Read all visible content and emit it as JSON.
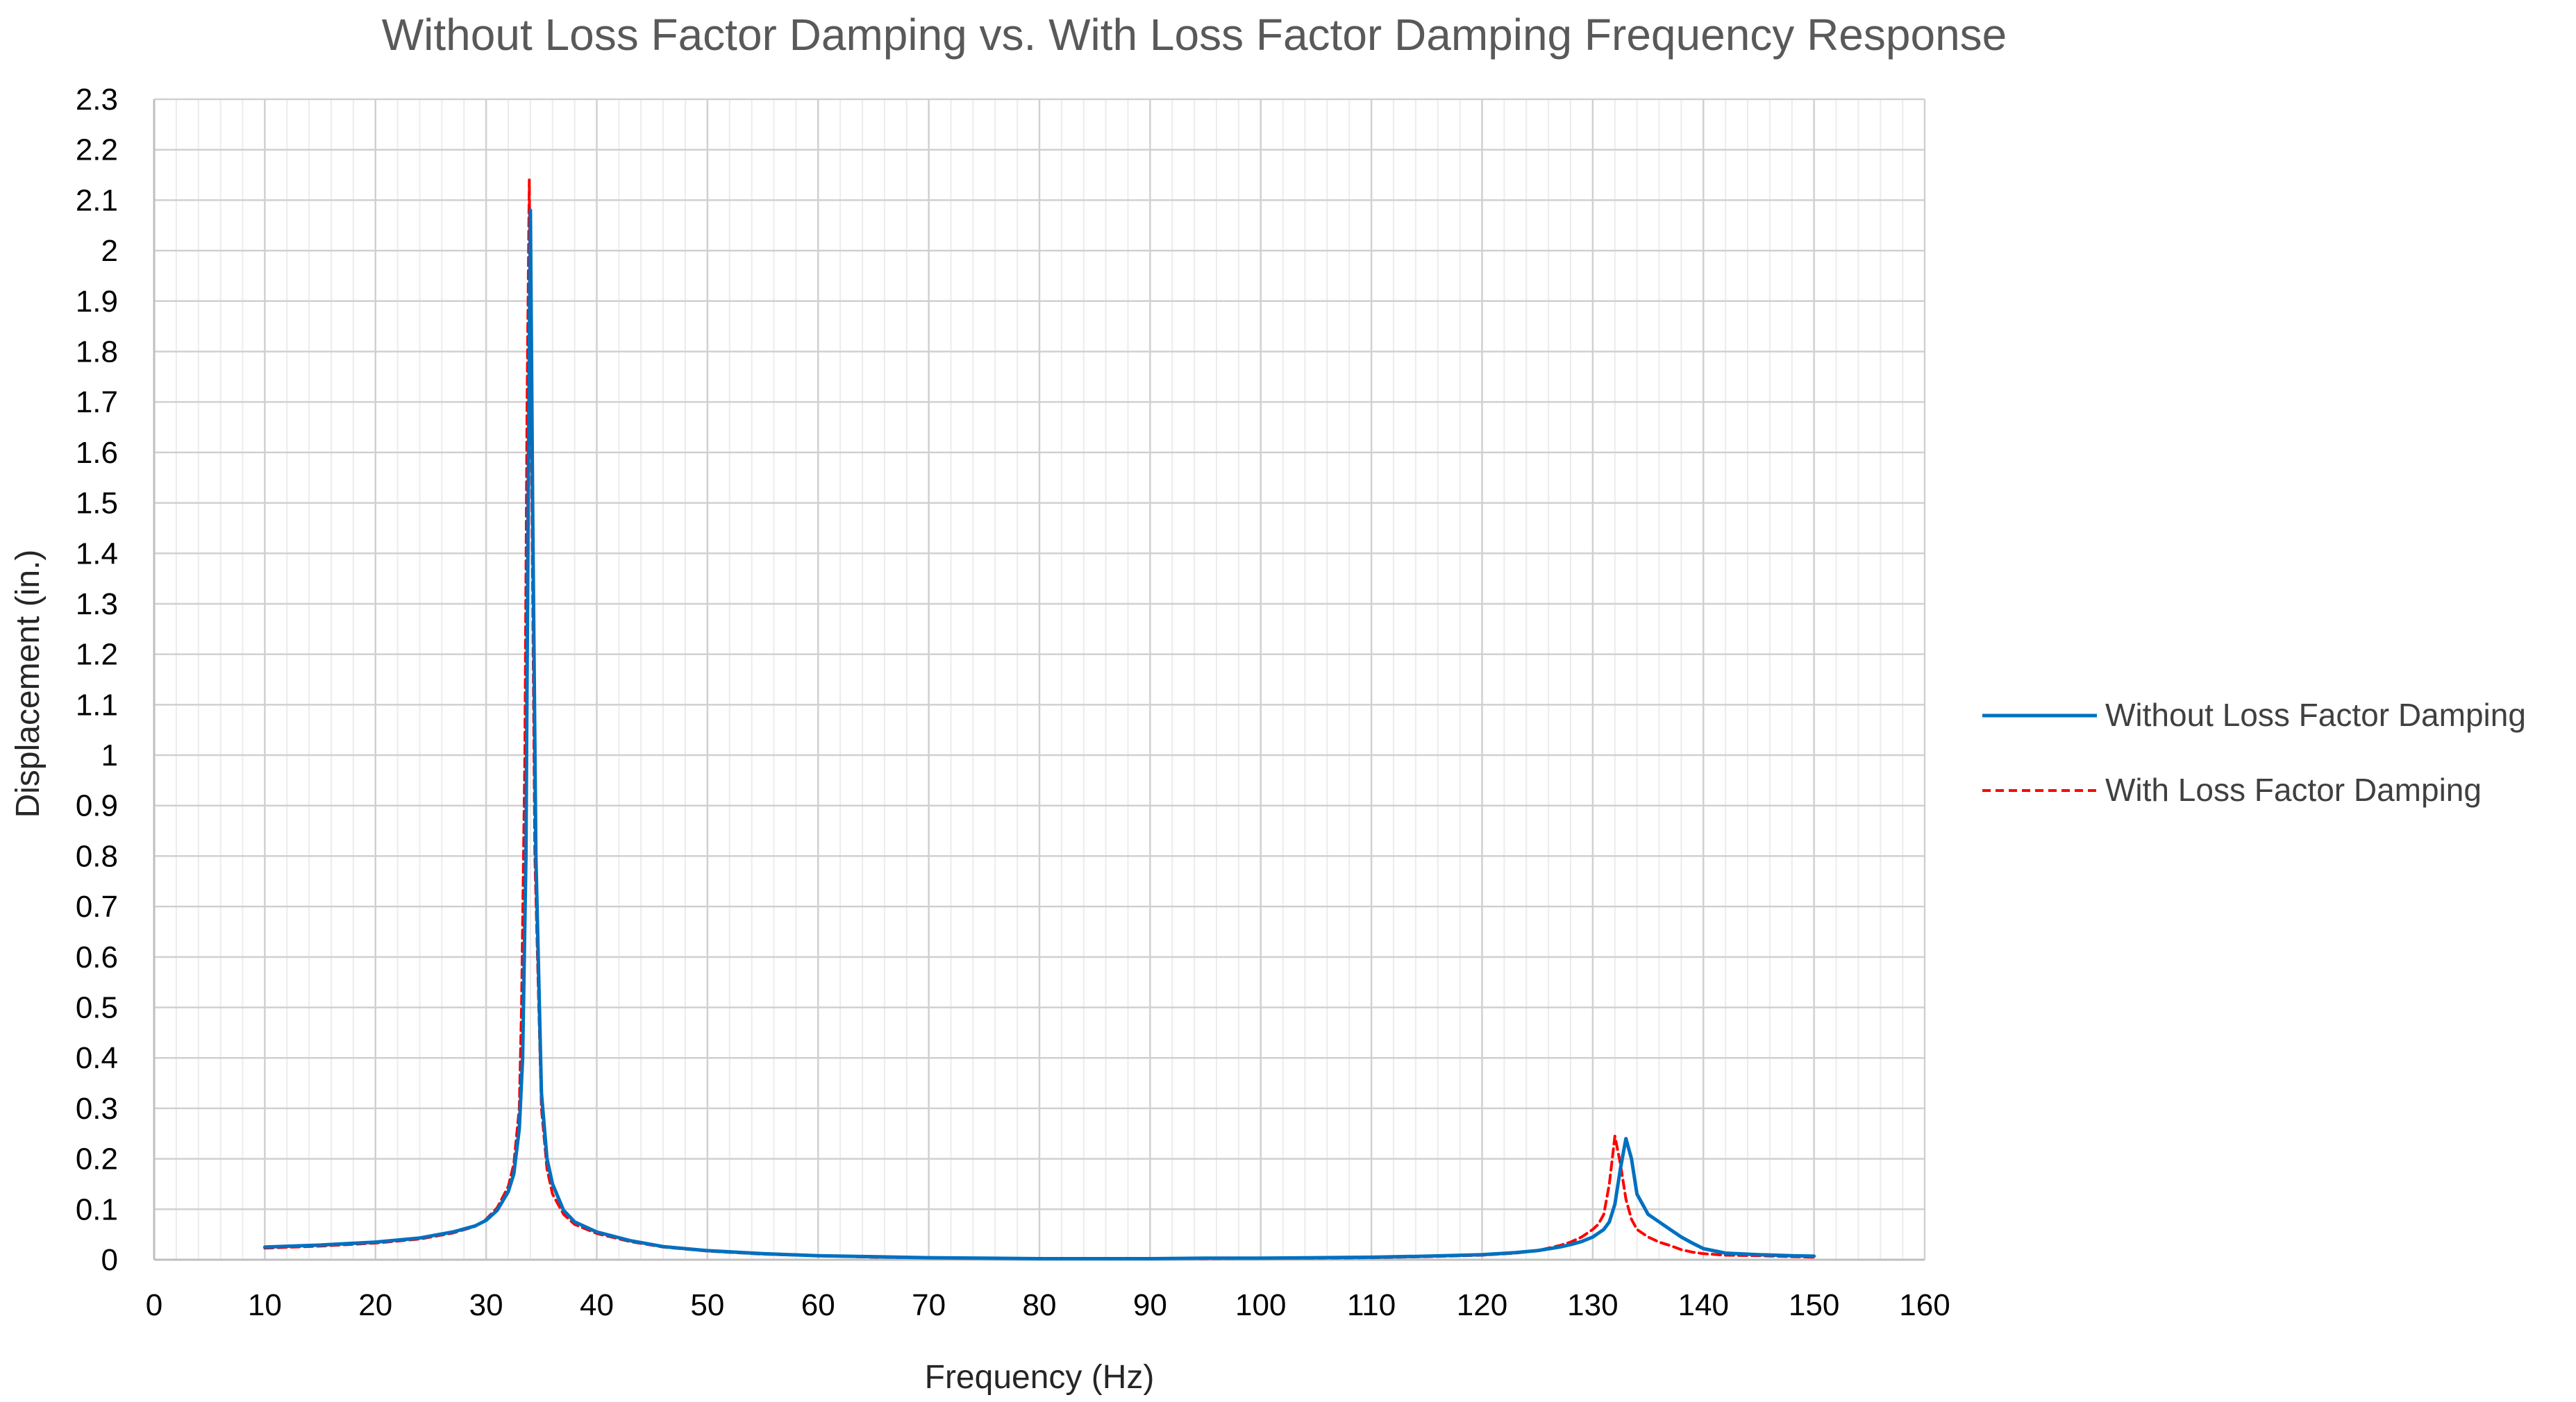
{
  "chart_data": {
    "type": "line",
    "title": "Without Loss Factor Damping vs. With Loss Factor Damping Frequency Response",
    "xlabel": "Frequency (Hz)",
    "ylabel": "Displacement (in.)",
    "xlim": [
      0,
      160
    ],
    "ylim": [
      0,
      2.3
    ],
    "x_major_step": 10,
    "x_minor_step": 2,
    "y_major_step": 0.1,
    "grid": true,
    "legend_position": "right",
    "x_tick_labels": [
      "0",
      "10",
      "20",
      "30",
      "40",
      "50",
      "60",
      "70",
      "80",
      "90",
      "100",
      "110",
      "120",
      "130",
      "140",
      "150",
      "160"
    ],
    "y_tick_labels": [
      "0",
      "0.1",
      "0.2",
      "0.3",
      "0.4",
      "0.5",
      "0.6",
      "0.7",
      "0.8",
      "0.9",
      "1",
      "1.1",
      "1.2",
      "1.3",
      "1.4",
      "1.5",
      "1.6",
      "1.7",
      "1.8",
      "1.9",
      "2",
      "2.1",
      "2.2",
      "2.3"
    ],
    "series": [
      {
        "name": "Without Loss Factor Damping",
        "color": "#0070C0",
        "dash": "solid",
        "x": [
          10,
          15,
          20,
          24,
          27,
          29,
          30,
          31,
          32,
          32.5,
          33,
          33.3,
          33.6,
          33.8,
          34,
          34.2,
          34.5,
          35,
          35.5,
          36,
          37,
          38,
          40,
          43,
          46,
          50,
          55,
          60,
          65,
          70,
          75,
          80,
          85,
          90,
          95,
          100,
          105,
          110,
          115,
          120,
          123,
          125,
          127,
          128,
          129,
          130,
          131,
          131.5,
          132,
          132.5,
          133,
          133.5,
          134,
          135,
          136,
          137,
          138,
          139,
          140,
          142,
          145,
          148,
          150
        ],
        "y": [
          0.025,
          0.029,
          0.035,
          0.043,
          0.055,
          0.067,
          0.078,
          0.098,
          0.135,
          0.17,
          0.26,
          0.4,
          0.8,
          1.5,
          2.08,
          1.5,
          0.8,
          0.33,
          0.2,
          0.15,
          0.098,
          0.075,
          0.055,
          0.038,
          0.026,
          0.018,
          0.012,
          0.008,
          0.006,
          0.004,
          0.003,
          0.002,
          0.002,
          0.002,
          0.003,
          0.003,
          0.004,
          0.005,
          0.007,
          0.01,
          0.014,
          0.018,
          0.025,
          0.03,
          0.036,
          0.045,
          0.06,
          0.075,
          0.11,
          0.18,
          0.24,
          0.2,
          0.13,
          0.09,
          0.075,
          0.06,
          0.045,
          0.033,
          0.022,
          0.013,
          0.01,
          0.008,
          0.007
        ]
      },
      {
        "name": "With Loss Factor Damping",
        "color": "#FF0000",
        "dash": "dashed",
        "x": [
          10,
          15,
          20,
          24,
          27,
          29,
          30,
          31,
          32,
          32.5,
          33,
          33.2,
          33.5,
          33.7,
          33.9,
          34.1,
          34.4,
          35,
          35.5,
          36,
          37,
          38,
          40,
          43,
          46,
          50,
          55,
          60,
          65,
          70,
          75,
          80,
          85,
          90,
          95,
          100,
          105,
          110,
          115,
          120,
          123,
          125,
          127,
          128,
          129,
          130,
          130.5,
          131,
          131.5,
          132,
          132.5,
          133,
          133.5,
          134,
          135,
          136,
          137,
          138,
          139,
          140,
          142,
          145,
          148,
          150
        ],
        "y": [
          0.023,
          0.027,
          0.033,
          0.041,
          0.053,
          0.066,
          0.08,
          0.103,
          0.145,
          0.19,
          0.3,
          0.5,
          1.0,
          1.7,
          2.14,
          1.6,
          0.8,
          0.3,
          0.18,
          0.13,
          0.09,
          0.07,
          0.052,
          0.036,
          0.025,
          0.017,
          0.011,
          0.008,
          0.005,
          0.004,
          0.003,
          0.002,
          0.002,
          0.002,
          0.002,
          0.003,
          0.003,
          0.004,
          0.006,
          0.009,
          0.013,
          0.018,
          0.028,
          0.035,
          0.045,
          0.06,
          0.07,
          0.09,
          0.15,
          0.245,
          0.19,
          0.12,
          0.08,
          0.06,
          0.045,
          0.035,
          0.028,
          0.02,
          0.015,
          0.012,
          0.009,
          0.008,
          0.006,
          0.005
        ]
      }
    ]
  }
}
